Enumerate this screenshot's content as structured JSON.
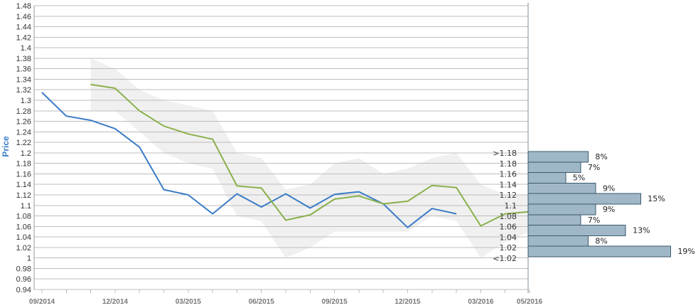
{
  "chart_data": {
    "type": "line",
    "ylabel": "Price",
    "ylim": [
      0.94,
      1.48
    ],
    "y_ticks": [
      "0.94",
      "0.96",
      "0.98",
      "1",
      "1.02",
      "1.04",
      "1.06",
      "1.08",
      "1.1",
      "1.12",
      "1.14",
      "1.16",
      "1.18",
      "1.2",
      "1.22",
      "1.24",
      "1.26",
      "1.28",
      "1.3",
      "1.32",
      "1.34",
      "1.36",
      "1.38",
      "1.4",
      "1.42",
      "1.44",
      "1.46",
      "1.48"
    ],
    "x_labels": [
      "09/2014",
      "12/2014",
      "03/2015",
      "06/2015",
      "09/2015",
      "12/2015",
      "03/2016",
      "05/2016"
    ],
    "grid": true,
    "colors": {
      "blue": "#3a7cc7",
      "green": "#8ab04b",
      "band": "#ededed",
      "hist_bar": "#9fb7c6",
      "hist_edge": "#3b5a6e"
    },
    "series": [
      {
        "color": "blue",
        "values": [
          1.315,
          1.27,
          1.262,
          1.246,
          1.211,
          1.13,
          1.12,
          1.084,
          1.122,
          1.097,
          1.122,
          1.095,
          1.121,
          1.126,
          1.103,
          1.058,
          1.094,
          1.084
        ]
      },
      {
        "color": "green",
        "start_index": 2,
        "values": [
          1.33,
          1.323,
          1.28,
          1.251,
          1.236,
          1.226,
          1.137,
          1.133,
          1.072,
          1.082,
          1.112,
          1.118,
          1.103,
          1.108,
          1.138,
          1.134,
          1.061,
          1.084,
          1.088
        ]
      }
    ],
    "band": {
      "start_index": 2,
      "upper": [
        1.38,
        1.36,
        1.32,
        1.3,
        1.29,
        1.28,
        1.2,
        1.19,
        1.13,
        1.14,
        1.18,
        1.19,
        1.16,
        1.17,
        1.19,
        1.2,
        1.14,
        1.12,
        1.12
      ],
      "lower": [
        1.28,
        1.28,
        1.24,
        1.2,
        1.18,
        1.17,
        1.08,
        1.07,
        1.0,
        1.02,
        1.05,
        1.05,
        1.05,
        1.05,
        1.08,
        1.07,
        1.0,
        1.03,
        1.05
      ]
    },
    "histogram": {
      "categories": [
        ">1.18",
        "1.18",
        "1.16",
        "1.14",
        "1.12",
        "1.1",
        "1.08",
        "1.06",
        "1.04",
        "1.02",
        "<1.02"
      ],
      "values": [
        8,
        7,
        5,
        9,
        15,
        9,
        7,
        13,
        8,
        19
      ],
      "labels": [
        "8%",
        "7%",
        "5%",
        "9%",
        "15%",
        "9%",
        "7%",
        "13%",
        "8%",
        "19%"
      ]
    }
  }
}
